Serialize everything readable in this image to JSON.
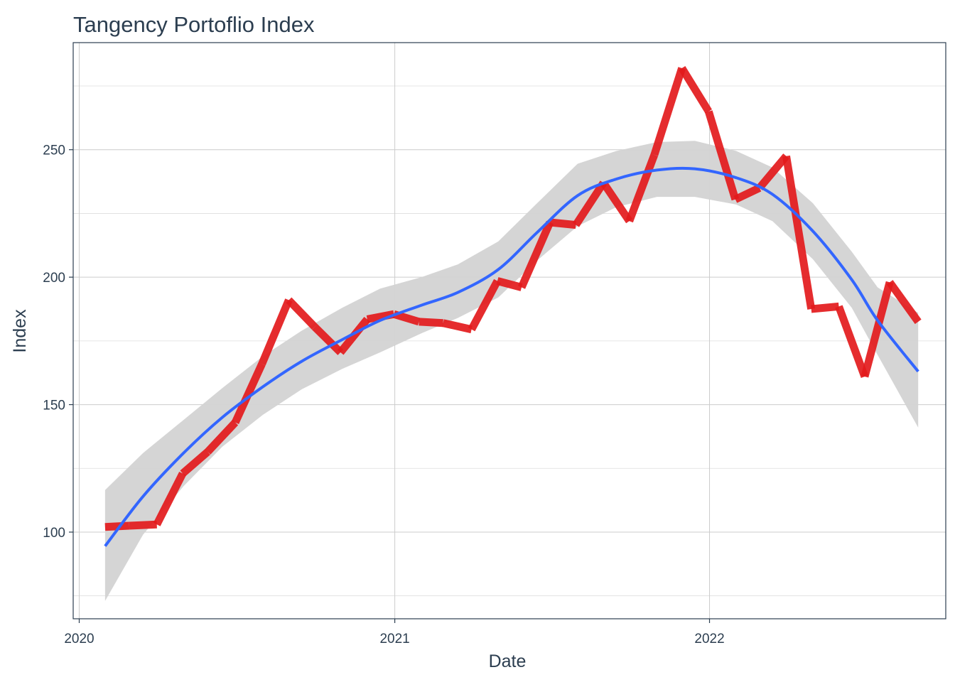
{
  "chart_data": {
    "type": "line",
    "title": "Tangency Portoflio Index",
    "xlabel": "Date",
    "ylabel": "Index",
    "x_ticks": [
      "2020",
      "2021",
      "2022"
    ],
    "y_ticks": [
      100,
      150,
      200,
      250
    ],
    "xlim": [
      "2019-12-25",
      "2022-10-02"
    ],
    "ylim": [
      66,
      292
    ],
    "grid": true,
    "series": [
      {
        "kind": "index-line",
        "x": [
          "2020-01-31",
          "2020-02-28",
          "2020-03-31",
          "2020-04-30",
          "2020-05-29",
          "2020-06-30",
          "2020-07-31",
          "2020-08-31",
          "2020-09-30",
          "2020-10-30",
          "2020-11-30",
          "2020-12-31",
          "2021-01-29",
          "2021-02-26",
          "2021-03-31",
          "2021-04-30",
          "2021-05-28",
          "2021-06-30",
          "2021-07-30",
          "2021-08-31",
          "2021-09-30",
          "2021-10-29",
          "2021-11-30",
          "2021-12-31",
          "2022-01-31",
          "2022-02-28",
          "2022-03-31",
          "2022-04-29",
          "2022-05-31",
          "2022-06-30",
          "2022-07-29",
          "2022-08-31"
        ],
        "values": [
          102,
          102.5,
          103,
          123,
          131.5,
          143,
          166,
          191,
          180.5,
          170.5,
          183.5,
          185.5,
          182.5,
          182,
          179.5,
          198.5,
          196,
          221.5,
          220.5,
          237,
          222,
          248,
          282,
          265,
          230.5,
          235,
          247.5,
          187.5,
          188.5,
          161,
          198,
          182.5
        ],
        "color": "#e31a1c"
      },
      {
        "kind": "smooth-fit",
        "x": [
          "2020-01-31",
          "2020-03-15",
          "2020-05-01",
          "2020-06-15",
          "2020-08-01",
          "2020-09-15",
          "2020-11-01",
          "2020-12-15",
          "2021-02-01",
          "2021-03-15",
          "2021-05-01",
          "2021-06-15",
          "2021-08-01",
          "2021-09-15",
          "2021-11-01",
          "2021-12-15",
          "2022-02-01",
          "2022-03-15",
          "2022-05-01",
          "2022-06-15",
          "2022-07-15",
          "2022-08-31"
        ],
        "values": [
          94.5,
          114,
          131,
          145,
          157,
          167,
          175.5,
          183,
          189,
          194,
          203,
          217.5,
          232,
          238.5,
          242,
          242.5,
          239,
          232.5,
          218,
          199,
          183,
          163
        ],
        "ci_upper": [
          116.5,
          131,
          144,
          156.5,
          169,
          179,
          188,
          195.5,
          200,
          205,
          214,
          229,
          244.5,
          249.5,
          253,
          253.5,
          249.5,
          243,
          229,
          210,
          196,
          186
        ],
        "ci_lower": [
          73,
          99,
          118,
          133.5,
          146,
          156,
          164,
          170.5,
          178,
          184,
          192,
          206.5,
          220,
          227.5,
          231.5,
          231.5,
          228.5,
          222,
          207,
          188,
          169.5,
          141
        ],
        "color": "#3366ff",
        "ci_color": "#d3d3d3"
      }
    ]
  }
}
